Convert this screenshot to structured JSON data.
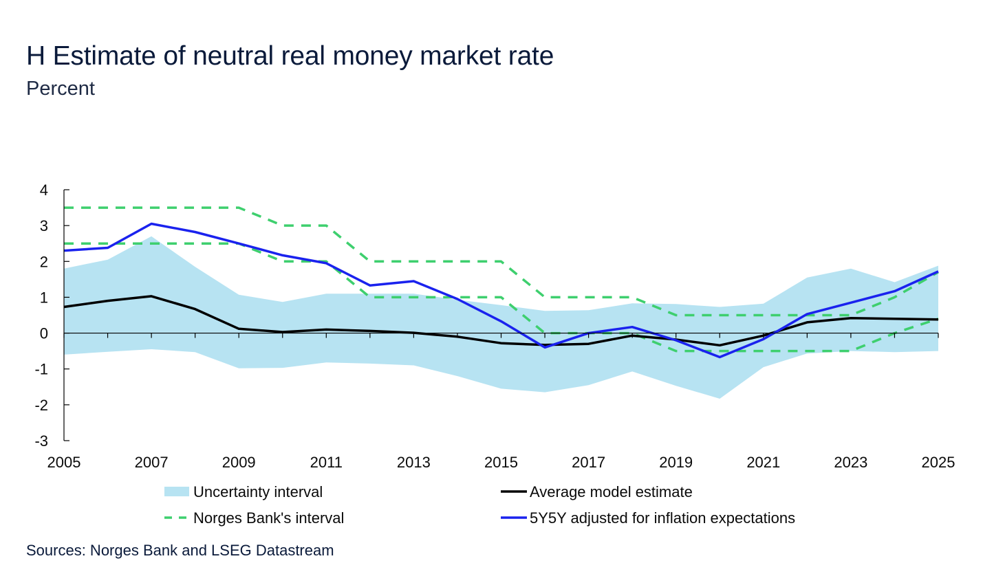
{
  "header": {
    "title": "H Estimate of neutral real money market rate",
    "subtitle": "Percent"
  },
  "footer": {
    "source": "Sources: Norges Bank and LSEG Datastream"
  },
  "colors": {
    "band": "#b7e3f2",
    "average": "#000000",
    "norges": "#3ecf6e",
    "fiveyfivey": "#1a22ee",
    "axis": "#000000"
  },
  "chart_data": {
    "type": "line",
    "title": "H Estimate of neutral real money market rate",
    "ylabel": "Percent",
    "xlim": [
      2005,
      2025
    ],
    "ylim": [
      -3,
      4
    ],
    "yticks": [
      4,
      3,
      2,
      1,
      0,
      -1,
      -2,
      -3
    ],
    "yticklabels": [
      "4",
      "3",
      "2",
      "1",
      "0",
      "-1",
      "-2",
      "-3"
    ],
    "xticks": [
      2005,
      2007,
      2009,
      2011,
      2013,
      2015,
      2017,
      2019,
      2021,
      2023,
      2025
    ],
    "xticklabels": [
      "2005",
      "2007",
      "2009",
      "2011",
      "2013",
      "2015",
      "2017",
      "2019",
      "2021",
      "2023",
      "2025"
    ],
    "x": [
      2005,
      2006,
      2007,
      2008,
      2009,
      2010,
      2011,
      2012,
      2013,
      2014,
      2015,
      2016,
      2017,
      2018,
      2019,
      2020,
      2021,
      2022,
      2023,
      2024,
      2025
    ],
    "band": {
      "name": "Uncertainty interval",
      "upper": [
        1.8,
        2.05,
        2.7,
        1.85,
        1.07,
        0.87,
        1.1,
        1.1,
        1.1,
        0.93,
        0.78,
        0.62,
        0.64,
        0.83,
        0.81,
        0.73,
        0.82,
        1.55,
        1.8,
        1.42,
        1.88
      ],
      "lower": [
        -0.6,
        -0.52,
        -0.45,
        -0.53,
        -0.98,
        -0.97,
        -0.82,
        -0.85,
        -0.9,
        -1.2,
        -1.55,
        -1.65,
        -1.45,
        -1.07,
        -1.47,
        -1.83,
        -0.95,
        -0.57,
        -0.5,
        -0.53,
        -0.5
      ]
    },
    "series": [
      {
        "name": "Average model estimate",
        "style": "solid",
        "values": [
          0.73,
          0.9,
          1.03,
          0.67,
          0.12,
          0.03,
          0.1,
          0.06,
          0.01,
          -0.1,
          -0.28,
          -0.33,
          -0.3,
          -0.07,
          -0.18,
          -0.34,
          -0.07,
          0.3,
          0.42,
          0.4,
          0.38
        ]
      },
      {
        "name": "Norges Bank's interval",
        "style": "dashed",
        "values": [
          3.5,
          3.5,
          3.5,
          3.5,
          3.5,
          3.0,
          3.0,
          2.0,
          2.0,
          2.0,
          2.0,
          1.0,
          1.0,
          1.0,
          0.5,
          0.5,
          0.5,
          0.5,
          0.5,
          1.0,
          1.7
        ]
      },
      {
        "name": "Norges Bank's interval (lower)",
        "style": "dashed",
        "values": [
          2.5,
          2.5,
          2.5,
          2.5,
          2.5,
          2.0,
          2.0,
          1.0,
          1.0,
          1.0,
          1.0,
          0.0,
          0.0,
          0.0,
          -0.5,
          -0.5,
          -0.5,
          -0.5,
          -0.5,
          0.0,
          0.4
        ]
      },
      {
        "name": "5Y5Y adjusted for inflation expectations",
        "style": "solid",
        "values": [
          2.3,
          2.38,
          3.05,
          2.82,
          2.5,
          2.17,
          1.95,
          1.33,
          1.45,
          0.95,
          0.33,
          -0.4,
          0.0,
          0.17,
          -0.2,
          -0.67,
          -0.17,
          0.53,
          0.85,
          1.17,
          1.72
        ]
      }
    ],
    "legend": [
      {
        "label": "Uncertainty interval",
        "kind": "band"
      },
      {
        "label": "Average model estimate",
        "kind": "solid-black"
      },
      {
        "label": "Norges Bank's interval",
        "kind": "dashed-green"
      },
      {
        "label": "5Y5Y adjusted for inflation expectations",
        "kind": "solid-blue"
      }
    ]
  }
}
